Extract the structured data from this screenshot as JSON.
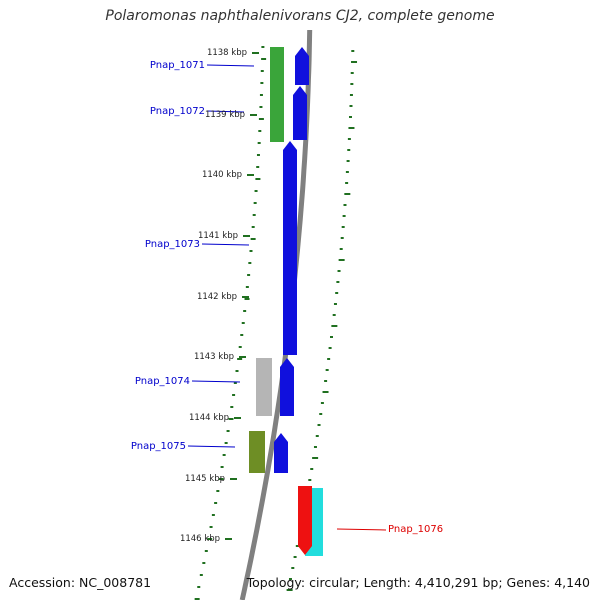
{
  "title": "Polaromonas naphthalenivorans CJ2, complete genome",
  "footer": {
    "accession": "Accession: NC_008781",
    "stats": "Topology: circular; Length: 4,410,291 bp; Genes: 4,140"
  },
  "scale_ticks": [
    "1138 kbp",
    "1139 kbp",
    "1140 kbp",
    "1141 kbp",
    "1142 kbp",
    "1143 kbp",
    "1144 kbp",
    "1145 kbp",
    "1146 kbp"
  ],
  "genes": [
    {
      "label": "Pnap_1071",
      "strand": "forward",
      "color": "#1010dd",
      "cog_color": "#3aa53a"
    },
    {
      "label": "Pnap_1072",
      "strand": "forward",
      "color": "#1010dd",
      "cog_color": "#3aa53a"
    },
    {
      "label": "Pnap_1073",
      "strand": "forward",
      "color": "#1010dd",
      "cog_color": ""
    },
    {
      "label": "Pnap_1074",
      "strand": "forward",
      "color": "#1010dd",
      "cog_color": "#b5b5b5"
    },
    {
      "label": "Pnap_1075",
      "strand": "forward",
      "color": "#1010dd",
      "cog_color": "#6e8e25"
    },
    {
      "label": "Pnap_1076",
      "strand": "reverse",
      "color": "#ee1111",
      "cog_color": "#22dddd"
    }
  ],
  "colors": {
    "forward_label": "#0000cc",
    "reverse_label": "#dd0000",
    "backbone": "#808080",
    "tick": "#207020"
  }
}
